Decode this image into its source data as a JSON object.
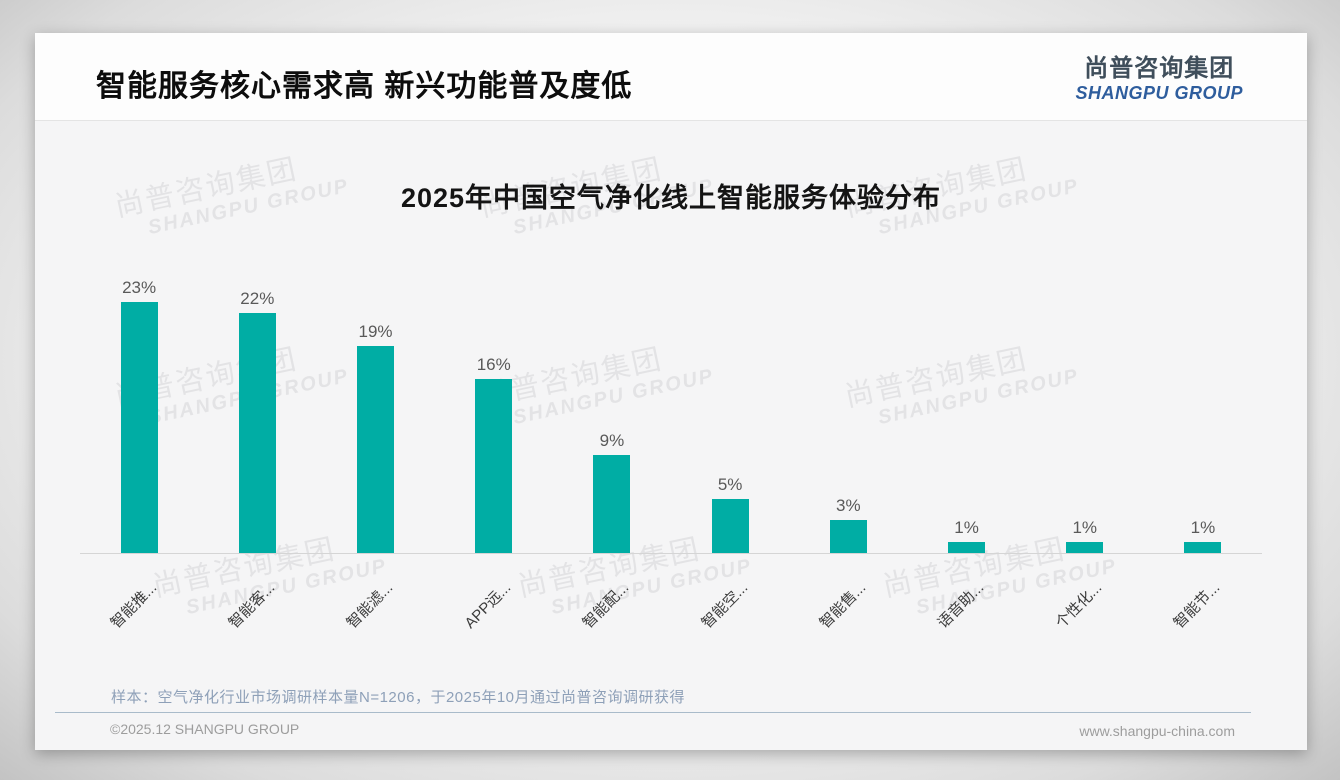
{
  "header": {
    "title": "智能服务核心需求高 新兴功能普及度低",
    "logo_cn": "尚普咨询集团",
    "logo_en": "SHANGPU GROUP"
  },
  "chart_data": {
    "type": "bar",
    "title": "2025年中国空气净化线上智能服务体验分布",
    "categories": [
      "智能推...",
      "智能客...",
      "智能滤...",
      "APP远...",
      "智能配...",
      "智能空...",
      "智能售...",
      "语音助...",
      "个性化...",
      "智能节..."
    ],
    "values": [
      23,
      22,
      19,
      16,
      9,
      5,
      3,
      1,
      1,
      1
    ],
    "value_labels": [
      "23%",
      "22%",
      "19%",
      "16%",
      "9%",
      "5%",
      "3%",
      "1%",
      "1%",
      "1%"
    ],
    "unit": "%",
    "bar_color": "#00ADA4",
    "value_label_color": "#595959",
    "ylim": [
      0,
      25
    ],
    "grid": false,
    "legend": false,
    "x_label_rotation": -45
  },
  "watermark": {
    "line1": "尚普咨询集团",
    "line2": "SHANGPU GROUP"
  },
  "footnote": {
    "sample": "样本：空气净化行业市场调研样本量N=1206，于2025年10月通过尚普咨询调研获得"
  },
  "footer": {
    "copyright": "©2025.12 SHANGPU GROUP",
    "website": "www.shangpu-china.com"
  }
}
